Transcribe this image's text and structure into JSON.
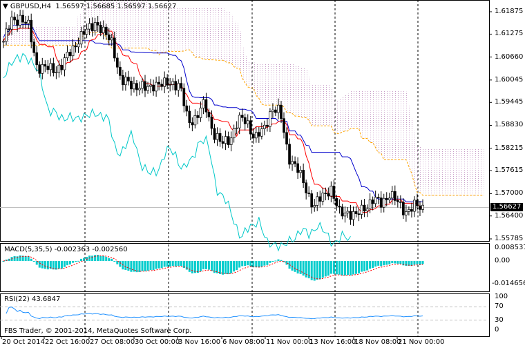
{
  "chart_header": {
    "symbol": "GBPUSD,H4",
    "open": "1.56597",
    "high": "1.56685",
    "low": "1.56597",
    "close": "1.56627"
  },
  "macd_label": {
    "name": "MACD(5,35,5)",
    "main": "-0.002363",
    "signal": "-0.002560"
  },
  "rsi_label": {
    "name": "RSI(22)",
    "value": "43.6847"
  },
  "copyright": "FBS Trader, © 2001-2014, MetaQuotes Software Corp.",
  "colors": {
    "bull": "#000000",
    "tenkan": "#ff0000",
    "kijun": "#0000cc",
    "chikou": "#00c8c8",
    "senkou": "#ffa500",
    "cloud": "#c8a0c8",
    "macd_hist": "#00cccc",
    "macd_signal": "#ff0000",
    "rsi": "#1e90ff"
  },
  "chart_data": {
    "type": "candlestick",
    "symbol": "GBPUSD",
    "timeframe": "H4",
    "price_axis": {
      "ticks": [
        "1.61875",
        "1.61275",
        "1.60660",
        "1.60045",
        "1.59445",
        "1.58830",
        "1.58215",
        "1.57615",
        "1.57000",
        "1.56400",
        "1.55785"
      ],
      "range": [
        1.55785,
        1.61875
      ],
      "current": "1.56627"
    },
    "macd_axis": {
      "ticks": [
        "0.008537",
        "0.00",
        "-0.014656"
      ],
      "range": [
        -0.014656,
        0.008537
      ]
    },
    "rsi_axis": {
      "ticks": [
        "100",
        "70",
        "30",
        "0"
      ],
      "levels": [
        70,
        30
      ]
    },
    "time_axis": [
      "20 Oct 2014",
      "22 Oct 16:00",
      "27 Oct 08:00",
      "30 Oct 00:00",
      "3 Nov 16:00",
      "6 Nov 08:00",
      "11 Nov 00:00",
      "13 Nov 16:00",
      "18 Nov 08:00",
      "21 Nov 00:00"
    ],
    "closes": [
      1.6108,
      1.6163,
      1.6173,
      1.6145,
      1.6043,
      1.6034,
      1.6034,
      1.6043,
      1.608,
      1.6117,
      1.6136,
      1.6163,
      1.6126,
      1.6108,
      1.5997,
      1.5997,
      1.5988,
      1.5978,
      1.5997,
      1.5988,
      1.6001,
      1.5988,
      1.5895,
      1.5904,
      1.5941,
      1.5867,
      1.583,
      1.5849,
      1.5895,
      1.5895,
      1.5849,
      1.5867,
      1.5932,
      1.5914,
      1.5802,
      1.5765,
      1.5719,
      1.5664,
      1.5691,
      1.5719,
      1.5645,
      1.5654,
      1.5636,
      1.5664,
      1.5682,
      1.5673,
      1.5701,
      1.5673,
      1.5654,
      1.5664,
      1.56627
    ],
    "grid": false
  }
}
